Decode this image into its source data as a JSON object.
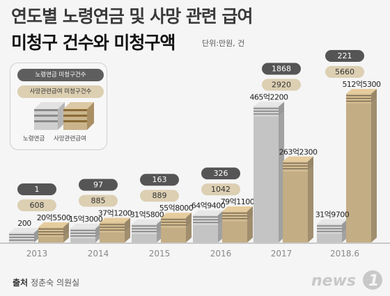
{
  "title_line1": "연도별 노령연금 및 사망 관련 급여",
  "title_line2": "미청구 건수와 미청구액",
  "unit": "단위:만원, 건",
  "legend": {
    "old_age_count": "노령연금 미청구건수",
    "death_count": "사망관련급여 미청구건수",
    "old_age_label": "노령연금",
    "death_label": "사망관련급여"
  },
  "source_label": "출처",
  "source_value": "정춘숙 의원실",
  "logo_text": "news1",
  "colors": {
    "old_age": "#c4c4c4",
    "death": "#c3ad85",
    "count_old_bg": "#555555",
    "count_death_bg": "#dccfb2"
  },
  "chart_data": {
    "type": "bar",
    "categories": [
      "2013",
      "2014",
      "2015",
      "2016",
      "2017",
      "2018.6"
    ],
    "series": [
      {
        "name": "노령연금",
        "values": [
          200,
          153000,
          315800,
          649400,
          4652200,
          319700
        ],
        "labels": [
          "200",
          "15억3000",
          "31억5800",
          "64억9400",
          "465억2200",
          "31억9700"
        ]
      },
      {
        "name": "사망관련급여",
        "values": [
          205500,
          371200,
          558000,
          791100,
          2632300,
          5125300
        ],
        "labels": [
          "20억5500",
          "37억1200",
          "55억8000",
          "79억1100",
          "263억2300",
          "512억5300"
        ]
      }
    ],
    "counts": {
      "old_age": [
        "1",
        "97",
        "163",
        "326",
        "1868",
        "221"
      ],
      "death": [
        "608",
        "885",
        "889",
        "1042",
        "2920",
        "5660"
      ]
    }
  }
}
